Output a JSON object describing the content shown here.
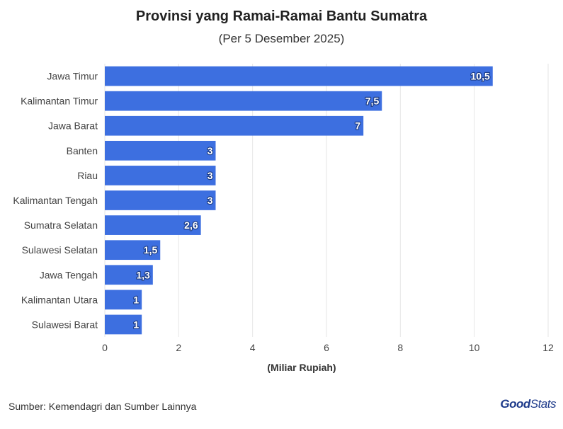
{
  "header": {
    "title": "Provinsi yang Ramai-Ramai Bantu Sumatra",
    "subtitle": "(Per 5 Desember 2025)"
  },
  "footer": {
    "source": "Sumber: Kemendagri dan Sumber Lainnya",
    "logo_bold": "Good",
    "logo_rest": "Stats"
  },
  "colors": {
    "bar": "#3d6fe0",
    "grid": "#e6e6e6",
    "logo": "#1d3a8a"
  },
  "chart_data": {
    "type": "bar",
    "orientation": "horizontal",
    "title": "Provinsi yang Ramai-Ramai Bantu Sumatra",
    "subtitle": "(Per 5 Desember 2025)",
    "xlabel": "(Miliar Rupiah)",
    "ylabel": "",
    "categories": [
      "Jawa Timur",
      "Kalimantan Timur",
      "Jawa Barat",
      "Banten",
      "Riau",
      "Kalimantan Tengah",
      "Sumatra Selatan",
      "Sulawesi Selatan",
      "Jawa Tengah",
      "Kalimantan Utara",
      "Sulawesi Barat"
    ],
    "values": [
      10.5,
      7.5,
      7,
      3,
      3,
      3,
      2.6,
      1.5,
      1.3,
      1,
      1
    ],
    "value_labels": [
      "10,5",
      "7,5",
      "7",
      "3",
      "3",
      "3",
      "2,6",
      "1,5",
      "1,3",
      "1",
      "1"
    ],
    "xlim": [
      0,
      12
    ],
    "xticks": [
      0,
      2,
      4,
      6,
      8,
      10,
      12
    ],
    "grid": true
  }
}
